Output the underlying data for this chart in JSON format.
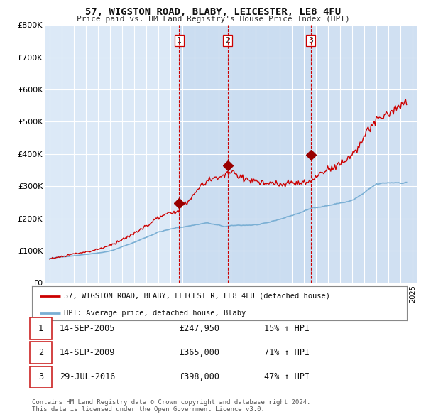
{
  "title": "57, WIGSTON ROAD, BLABY, LEICESTER, LE8 4FU",
  "subtitle": "Price paid vs. HM Land Registry's House Price Index (HPI)",
  "ylim": [
    0,
    800000
  ],
  "yticks": [
    0,
    100000,
    200000,
    300000,
    400000,
    500000,
    600000,
    700000,
    800000
  ],
  "ytick_labels": [
    "£0",
    "£100K",
    "£200K",
    "£300K",
    "£400K",
    "£500K",
    "£600K",
    "£700K",
    "£800K"
  ],
  "xlim_start": 1994.6,
  "xlim_end": 2025.4,
  "background_color": "#ffffff",
  "plot_bg_color": "#dce9f7",
  "grid_color": "#ffffff",
  "red_line_color": "#cc0000",
  "blue_line_color": "#7aafd4",
  "shade_color": "#c5d8ef",
  "sale_marker_color": "#990000",
  "dashed_line_color": "#cc0000",
  "transactions": [
    {
      "label": "1",
      "date": 2005.71,
      "price": 247950
    },
    {
      "label": "2",
      "date": 2009.71,
      "price": 365000
    },
    {
      "label": "3",
      "date": 2016.58,
      "price": 398000
    }
  ],
  "legend_entries": [
    {
      "label": "57, WIGSTON ROAD, BLABY, LEICESTER, LE8 4FU (detached house)",
      "color": "#cc0000"
    },
    {
      "label": "HPI: Average price, detached house, Blaby",
      "color": "#7aafd4"
    }
  ],
  "table_rows": [
    {
      "num": "1",
      "date": "14-SEP-2005",
      "price": "£247,950",
      "change": "15% ↑ HPI"
    },
    {
      "num": "2",
      "date": "14-SEP-2009",
      "price": "£365,000",
      "change": "71% ↑ HPI"
    },
    {
      "num": "3",
      "date": "29-JUL-2016",
      "price": "£398,000",
      "change": "47% ↑ HPI"
    }
  ],
  "footer": "Contains HM Land Registry data © Crown copyright and database right 2024.\nThis data is licensed under the Open Government Licence v3.0."
}
